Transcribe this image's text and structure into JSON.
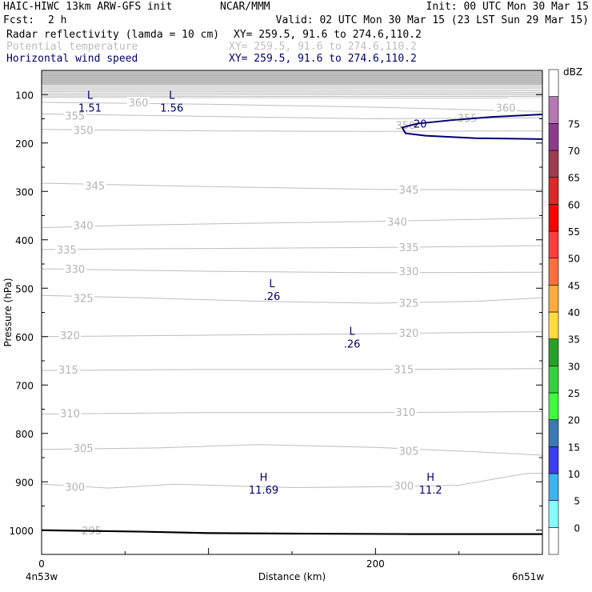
{
  "header": {
    "model": "HAIC-HIWC 13km ARW-GFS init",
    "org": "NCAR/MMM",
    "init": "Init: 00 UTC Mon 30 Mar 15",
    "fcst_label": "Fcst:",
    "fcst_value": "2 h",
    "valid": "Valid: 02 UTC Mon 30 Mar 15 (23 LST Sun 29 Mar 15)",
    "fields": [
      {
        "name": "Radar reflectivity (lamda = 10 cm)",
        "xy": "XY= 259.5, 91.6 to 274.6,110.2",
        "color": "#000000"
      },
      {
        "name": "Potential temperature",
        "xy": "XY= 259.5, 91.6 to 274.6,110.2",
        "color": "#bdbdbd"
      },
      {
        "name": "Horizontal wind speed",
        "xy": "XY= 259.5, 91.6 to 274.6,110.2",
        "color": "#00006e"
      }
    ]
  },
  "chart_data": {
    "type": "contour",
    "xlabel": "Distance (km)",
    "ylabel": "Pressure (hPa)",
    "xlim": [
      0,
      300
    ],
    "ylim": [
      1050,
      50
    ],
    "x_ticks": [
      0,
      200
    ],
    "x_end_labels": [
      "4n53w",
      "6n51w"
    ],
    "y_ticks": [
      100,
      200,
      300,
      400,
      500,
      600,
      700,
      800,
      900,
      1000
    ],
    "potential_temperature": {
      "color": "#bdbdbd",
      "contours": [
        {
          "value": "295",
          "points": [
            [
              0,
              1000
            ],
            [
              60,
              1003
            ],
            [
              150,
              1007
            ],
            [
              220,
              1008
            ],
            [
              300,
              1008
            ]
          ],
          "labels": [
            [
              30,
              1000
            ]
          ]
        },
        {
          "value": "300",
          "points": [
            [
              0,
              905
            ],
            [
              40,
              913
            ],
            [
              80,
              905
            ],
            [
              150,
              912
            ],
            [
              210,
              910
            ],
            [
              250,
              907
            ],
            [
              290,
              883
            ],
            [
              300,
              882
            ]
          ],
          "labels": [
            [
              20,
              910
            ],
            [
              217,
              908
            ]
          ]
        },
        {
          "value": "305",
          "points": [
            [
              0,
              833
            ],
            [
              70,
              830
            ],
            [
              130,
              823
            ],
            [
              200,
              829
            ],
            [
              260,
              838
            ],
            [
              300,
              845
            ]
          ],
          "labels": [
            [
              25,
              830
            ],
            [
              220,
              836
            ]
          ]
        },
        {
          "value": "310",
          "points": [
            [
              0,
              760
            ],
            [
              100,
              757
            ],
            [
              200,
              757
            ],
            [
              300,
              755
            ]
          ],
          "labels": [
            [
              17,
              758
            ],
            [
              218,
              756
            ]
          ]
        },
        {
          "value": "315",
          "points": [
            [
              0,
              670
            ],
            [
              100,
              668
            ],
            [
              200,
              668
            ],
            [
              300,
              666
            ]
          ],
          "labels": [
            [
              16,
              668
            ],
            [
              217,
              667
            ]
          ]
        },
        {
          "value": "320",
          "points": [
            [
              0,
              600
            ],
            [
              100,
              597
            ],
            [
              200,
              594
            ],
            [
              300,
              590
            ]
          ],
          "labels": [
            [
              17,
              597
            ],
            [
              220,
              592
            ]
          ]
        },
        {
          "value": "325",
          "points": [
            [
              0,
              515
            ],
            [
              60,
              520
            ],
            [
              130,
              527
            ],
            [
              200,
              531
            ],
            [
              260,
              527
            ],
            [
              300,
              520
            ]
          ],
          "labels": [
            [
              25,
              520
            ],
            [
              220,
              530
            ]
          ]
        },
        {
          "value": "330",
          "points": [
            [
              0,
              460
            ],
            [
              100,
              465
            ],
            [
              200,
              468
            ],
            [
              300,
              467
            ]
          ],
          "labels": [
            [
              20,
              460
            ],
            [
              220,
              465
            ]
          ]
        },
        {
          "value": "335",
          "points": [
            [
              0,
              420
            ],
            [
              100,
              418
            ],
            [
              200,
              416
            ],
            [
              300,
              412
            ]
          ],
          "labels": [
            [
              15,
              420
            ],
            [
              220,
              415
            ]
          ]
        },
        {
          "value": "340",
          "points": [
            [
              0,
              375
            ],
            [
              50,
              370
            ],
            [
              120,
              366
            ],
            [
              200,
              362
            ],
            [
              300,
              355
            ]
          ],
          "labels": [
            [
              25,
              370
            ],
            [
              213,
              362
            ]
          ]
        },
        {
          "value": "345",
          "points": [
            [
              0,
              283
            ],
            [
              100,
              290
            ],
            [
              200,
              296
            ],
            [
              300,
              297
            ]
          ],
          "labels": [
            [
              32,
              288
            ],
            [
              220,
              296
            ]
          ]
        },
        {
          "value": "350",
          "points": [
            [
              0,
              172
            ],
            [
              100,
              175
            ],
            [
              200,
              176
            ],
            [
              300,
              175
            ]
          ],
          "labels": [
            [
              25,
              173
            ],
            [
              218,
              163
            ]
          ]
        },
        {
          "value": "355",
          "points": [
            [
              0,
              140
            ],
            [
              100,
              145
            ],
            [
              200,
              150
            ],
            [
              300,
              148
            ]
          ],
          "labels": [
            [
              20,
              143
            ],
            [
              255,
              148
            ]
          ]
        },
        {
          "value": "360",
          "points": [
            [
              0,
              116
            ],
            [
              100,
              120
            ],
            [
              200,
              126
            ],
            [
              300,
              135
            ]
          ],
          "labels": [
            [
              58,
              116
            ],
            [
              278,
              127
            ]
          ]
        }
      ]
    },
    "wind_speed": {
      "color": "#00006e",
      "contours": [
        {
          "value": "20",
          "labels": [
            [
              222,
              160
            ]
          ]
        }
      ],
      "extrema": [
        {
          "type": "L",
          "value": "1.51",
          "x": 29,
          "p": 100
        },
        {
          "type": "L",
          "value": "1.56",
          "x": 78,
          "p": 100
        },
        {
          "type": "L",
          "value": ".26",
          "x": 138,
          "p": 490
        },
        {
          "type": "L",
          "value": ".26",
          "x": 186,
          "p": 588
        },
        {
          "type": "H",
          "value": "11.69",
          "x": 133,
          "p": 890
        },
        {
          "type": "H",
          "value": "11.2",
          "x": 233,
          "p": 890
        }
      ]
    },
    "colorbar": {
      "title": "dBZ",
      "levels": [
        "0",
        "5",
        "10",
        "15",
        "20",
        "25",
        "30",
        "35",
        "40",
        "45",
        "50",
        "55",
        "60",
        "65",
        "70",
        "75"
      ],
      "colors": [
        "#ffffff",
        "#83ffff",
        "#3cb4f0",
        "#3c3cf0",
        "#3c78b4",
        "#3cff3c",
        "#32d23c",
        "#28a028",
        "#ffdc3c",
        "#ffaa3c",
        "#ff6e3c",
        "#ff3c3c",
        "#ff0000",
        "#dc2828",
        "#a03c50",
        "#8c3c8c",
        "#b478b4",
        "#ffffff"
      ]
    }
  }
}
